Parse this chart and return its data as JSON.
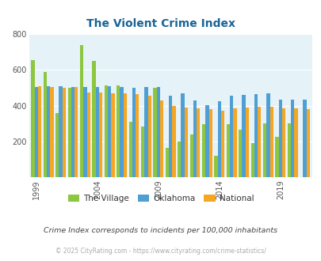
{
  "title": "The Violent Crime Index",
  "subtitle": "Crime Index corresponds to incidents per 100,000 inhabitants",
  "footer": "© 2025 CityRating.com - https://www.cityrating.com/crime-statistics/",
  "plot_years": [
    1999,
    2000,
    2001,
    2002,
    2003,
    2004,
    2005,
    2006,
    2007,
    2008,
    2009,
    2010,
    2011,
    2012,
    2013,
    2014,
    2015,
    2016,
    2017,
    2018,
    2019,
    2020,
    2021
  ],
  "village_data": [
    655,
    590,
    360,
    500,
    740,
    648,
    515,
    515,
    310,
    285,
    500,
    165,
    200,
    240,
    295,
    120,
    295,
    265,
    190,
    300,
    225,
    300,
    0
  ],
  "oklahoma_data": [
    505,
    510,
    510,
    505,
    505,
    505,
    510,
    505,
    500,
    505,
    505,
    455,
    470,
    430,
    405,
    425,
    455,
    460,
    465,
    470,
    435,
    435,
    435
  ],
  "national_data": [
    510,
    505,
    500,
    505,
    475,
    475,
    470,
    470,
    465,
    455,
    430,
    400,
    390,
    385,
    380,
    370,
    385,
    390,
    395,
    395,
    385,
    385,
    380
  ],
  "colors": {
    "village": "#8dc63f",
    "oklahoma": "#4f9fd4",
    "national": "#f5a623"
  },
  "ylim": [
    0,
    800
  ],
  "yticks": [
    0,
    200,
    400,
    600,
    800
  ],
  "label_years": [
    1999,
    2004,
    2009,
    2014,
    2019
  ],
  "background_color": "#e5f2f7",
  "title_color": "#1a6496",
  "subtitle_color": "#444444",
  "footer_color": "#aaaaaa",
  "legend_labels": [
    "The Village",
    "Oklahoma",
    "National"
  ],
  "bar_width": 0.28
}
